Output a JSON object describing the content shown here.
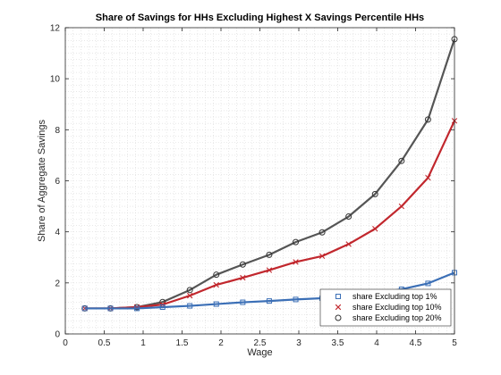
{
  "chart_data": {
    "type": "line",
    "title": "Share of Savings for HHs Excluding Highest X Savings Percentile HHs",
    "xlabel": "Wage",
    "ylabel": "Share of Aggregate Savings",
    "xlim": [
      0,
      5
    ],
    "ylim": [
      0,
      12
    ],
    "xticks": [
      0,
      0.5,
      1,
      1.5,
      2,
      2.5,
      3,
      3.5,
      4,
      4.5,
      5
    ],
    "yticks": [
      0,
      2,
      4,
      6,
      8,
      10,
      12
    ],
    "grid": "minor, dotted",
    "legend_position": "bottom-right",
    "x": [
      0.25,
      0.58,
      0.92,
      1.25,
      1.6,
      1.94,
      2.28,
      2.62,
      2.96,
      3.3,
      3.64,
      3.98,
      4.32,
      4.66,
      5.0
    ],
    "series": [
      {
        "name": "share Excluding top 1%",
        "color": "#3B6FB6",
        "marker": "square",
        "values": [
          1.0,
          1.0,
          1.0,
          1.05,
          1.1,
          1.17,
          1.24,
          1.29,
          1.35,
          1.4,
          1.48,
          1.58,
          1.75,
          1.98,
          2.4
        ]
      },
      {
        "name": "share Excluding top 10%",
        "color": "#C1272D",
        "marker": "x",
        "values": [
          1.0,
          1.0,
          1.05,
          1.15,
          1.5,
          1.92,
          2.2,
          2.5,
          2.82,
          3.05,
          3.52,
          4.12,
          5.0,
          6.12,
          8.35
        ]
      },
      {
        "name": "share Excluding top 20%",
        "color": "#555555",
        "marker": "circle",
        "values": [
          1.0,
          1.0,
          1.05,
          1.25,
          1.72,
          2.32,
          2.72,
          3.1,
          3.6,
          3.98,
          4.6,
          5.48,
          6.78,
          8.4,
          11.55
        ]
      }
    ]
  }
}
